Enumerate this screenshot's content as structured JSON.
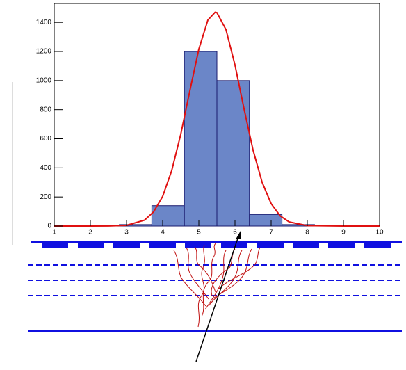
{
  "chart_data": {
    "type": "histogram",
    "bins": [
      1,
      1.9,
      2.8,
      3.7,
      4.6,
      5.5,
      6.4,
      7.3,
      8.2,
      9.1,
      10
    ],
    "values": [
      0,
      0,
      10,
      140,
      1200,
      1000,
      80,
      10,
      0,
      0
    ],
    "color": "#6b86c8",
    "edge_color": "#1a1a6e",
    "fit": {
      "color": "#e01010",
      "x": [
        1,
        2,
        2.5,
        3,
        3.5,
        3.75,
        4,
        4.25,
        4.5,
        4.75,
        5,
        5.25,
        5.45,
        5.5,
        5.75,
        6,
        6.25,
        6.5,
        6.75,
        7,
        7.25,
        7.5,
        8,
        9,
        10
      ],
      "values": [
        0,
        0,
        0.4,
        5,
        41,
        98,
        204,
        381,
        630,
        928,
        1216,
        1416,
        1470,
        1467,
        1351,
        1107,
        806,
        522,
        301,
        154,
        70,
        28,
        3,
        0,
        0
      ]
    },
    "xlim": [
      1,
      10
    ],
    "xticks": [
      1,
      2,
      3,
      4,
      5,
      6,
      7,
      8,
      9,
      10
    ],
    "ylim": [
      0,
      1530
    ],
    "yticks": [
      0,
      200,
      400,
      600,
      800,
      1000,
      1200,
      1400
    ]
  }
}
